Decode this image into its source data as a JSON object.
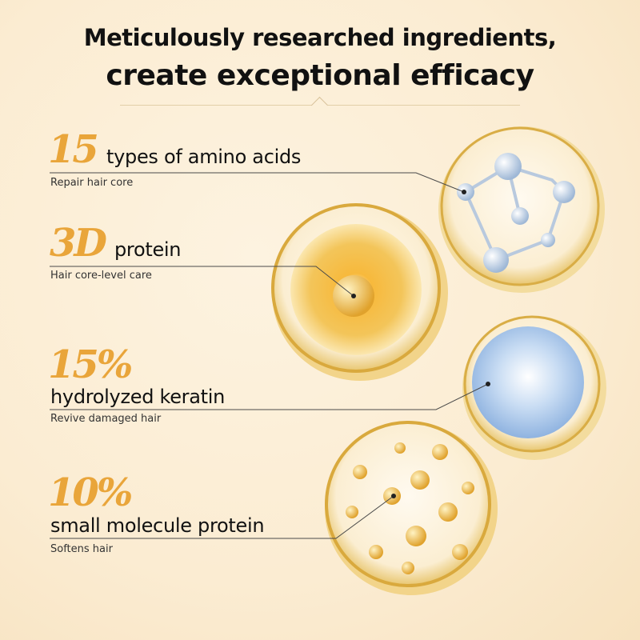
{
  "title": {
    "line1": "Meticulously researched ingredients,",
    "line2": "create exceptional efficacy"
  },
  "colors": {
    "accent": "#e9a53a",
    "background": "#fbecd2",
    "text": "#111111"
  },
  "ingredients": [
    {
      "number": "15",
      "label": "types of amino acids",
      "sub": "Repair hair core",
      "icon": "amino-acid-molecule-icon"
    },
    {
      "number": "3D",
      "label": "protein",
      "sub": "Hair core-level care",
      "icon": "golden-protein-sphere-icon"
    },
    {
      "number": "15%",
      "label": "hydrolyzed keratin",
      "sub": "Revive damaged hair",
      "icon": "blue-keratin-sphere-icon"
    },
    {
      "number": "10%",
      "label": "small molecule protein",
      "sub": "Softens hair",
      "icon": "molecule-cluster-icon"
    }
  ]
}
